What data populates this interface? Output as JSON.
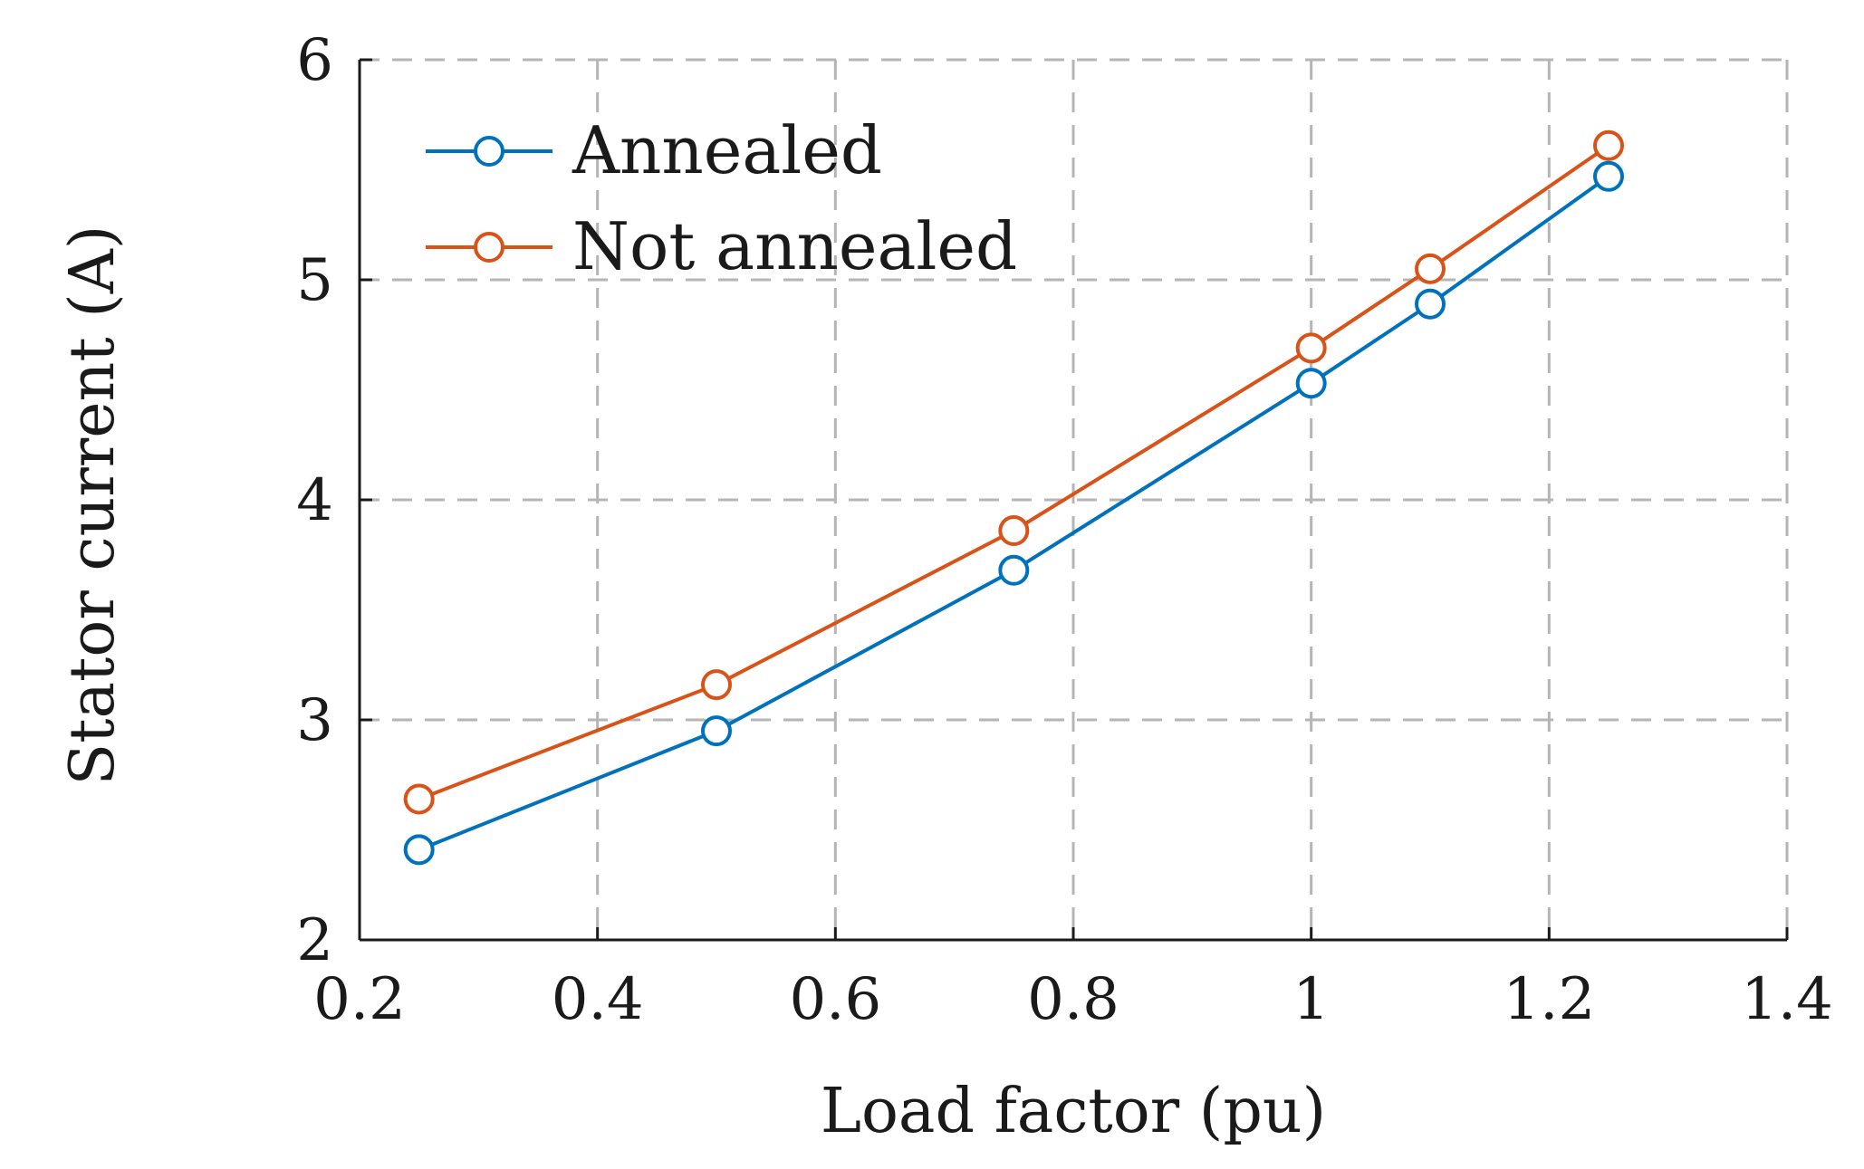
{
  "chart_data": {
    "type": "line",
    "title": "",
    "xlabel": "Load factor (pu)",
    "ylabel": "Stator current (A)",
    "xlim": [
      0.2,
      1.4
    ],
    "ylim": [
      2,
      6
    ],
    "xticks": [
      0.2,
      0.4,
      0.6,
      0.8,
      1.0,
      1.2,
      1.4
    ],
    "xtick_labels": [
      "0.2",
      "0.4",
      "0.6",
      "0.8",
      "1",
      "1.2",
      "1.4"
    ],
    "yticks": [
      2,
      3,
      4,
      5,
      6
    ],
    "ytick_labels": [
      "2",
      "3",
      "4",
      "5",
      "6"
    ],
    "grid": true,
    "legend_position": "top-left",
    "x": [
      0.25,
      0.5,
      0.75,
      1.0,
      1.1,
      1.25
    ],
    "series": [
      {
        "name": "Annealed",
        "color": "#0072bd",
        "marker": "circle",
        "values": [
          2.41,
          2.95,
          3.68,
          4.53,
          4.89,
          5.47
        ]
      },
      {
        "name": "Not annealed",
        "color": "#d95319",
        "marker": "circle",
        "values": [
          2.64,
          3.16,
          3.86,
          4.69,
          5.05,
          5.61
        ]
      }
    ]
  }
}
